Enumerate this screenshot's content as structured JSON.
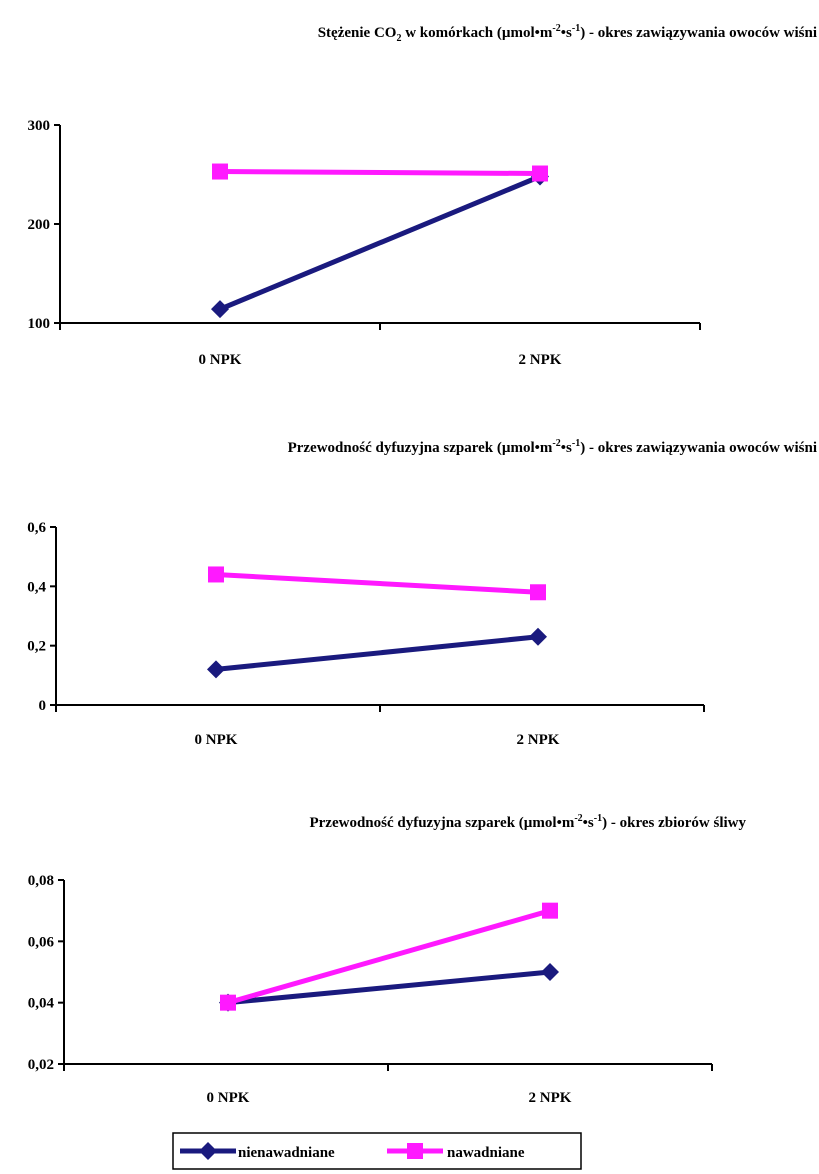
{
  "colors": {
    "nienawadniane": "#1a1a7e",
    "nawadniane": "#ff19ff",
    "axis": "#000000"
  },
  "legend": {
    "placement": "bottom-center",
    "items": [
      {
        "label": "nienawadniane",
        "marker": "diamond",
        "color": "#1a1a7e"
      },
      {
        "label": "nawadniane",
        "marker": "square",
        "color": "#ff19ff"
      }
    ]
  },
  "chart_data": [
    {
      "type": "line",
      "title": {
        "parts": [
          {
            "t": "Stężenie CO",
            "s": "normal"
          },
          {
            "t": "2",
            "s": "sub"
          },
          {
            "t": " w komórkach  (µmol•m",
            "s": "normal"
          },
          {
            "t": "-2",
            "s": "sup"
          },
          {
            "t": "•s",
            "s": "normal"
          },
          {
            "t": "-1",
            "s": "sup"
          },
          {
            "t": ") - okres zawiązywania owoców wiśni",
            "s": "normal"
          }
        ]
      },
      "categories": [
        "0 NPK",
        "2 NPK"
      ],
      "ylim": [
        100,
        300
      ],
      "yticks": [
        "100",
        "200",
        "300"
      ],
      "grid": false,
      "series": [
        {
          "name": "nienawadniane",
          "values": [
            114,
            248
          ]
        },
        {
          "name": "nawadniane",
          "values": [
            253,
            251
          ]
        }
      ]
    },
    {
      "type": "line",
      "title": {
        "parts": [
          {
            "t": "Przewodność dyfuzyjna szparek (µmol•m",
            "s": "normal"
          },
          {
            "t": "-2",
            "s": "sup"
          },
          {
            "t": "•s",
            "s": "normal"
          },
          {
            "t": "-1",
            "s": "sup"
          },
          {
            "t": ") - okres zawiązywania owoców wiśni",
            "s": "normal"
          }
        ]
      },
      "categories": [
        "0 NPK",
        "2 NPK"
      ],
      "ylim": [
        0,
        0.6
      ],
      "yticks": [
        "0",
        "0,2",
        "0,4",
        "0,6"
      ],
      "grid": false,
      "series": [
        {
          "name": "nienawadniane",
          "values": [
            0.12,
            0.23
          ]
        },
        {
          "name": "nawadniane",
          "values": [
            0.44,
            0.38
          ]
        }
      ]
    },
    {
      "type": "line",
      "title": {
        "parts": [
          {
            "t": "Przewodność dyfuzyjna szparek (µmol•m",
            "s": "normal"
          },
          {
            "t": "-2",
            "s": "sup"
          },
          {
            "t": "•s",
            "s": "normal"
          },
          {
            "t": "-1",
            "s": "sup"
          },
          {
            "t": ") - okres zbiorów śliwy",
            "s": "normal"
          }
        ]
      },
      "categories": [
        "0 NPK",
        "2 NPK"
      ],
      "ylim": [
        0.02,
        0.08
      ],
      "yticks": [
        "0,02",
        "0,04",
        "0,06",
        "0,08"
      ],
      "grid": false,
      "series": [
        {
          "name": "nienawadniane",
          "values": [
            0.04,
            0.05
          ]
        },
        {
          "name": "nawadniane",
          "values": [
            0.04,
            0.07
          ]
        }
      ]
    }
  ]
}
